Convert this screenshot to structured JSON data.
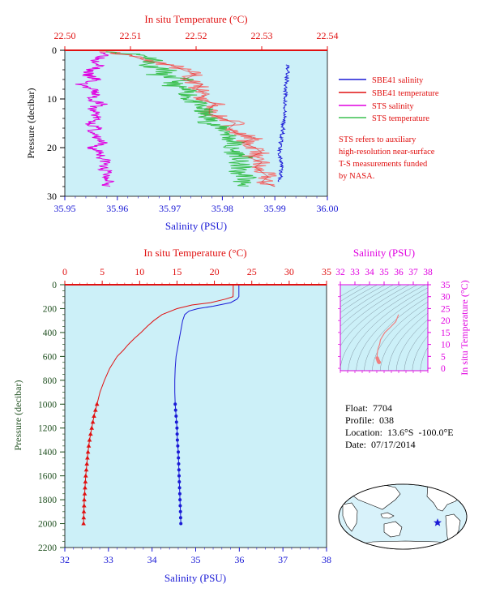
{
  "colors": {
    "blue": "#1a1ad6",
    "red": "#e01010",
    "magenta": "#e000e0",
    "green": "#3cc050",
    "salmon": "#f08080",
    "plotbg": "#ccf0f8",
    "pressure": "#205020",
    "land": "#ffffff",
    "ocean": "#d8f2fa"
  },
  "top_chart": {
    "top_axis_title": "In situ Temperature (°C)",
    "top_ticks": [
      "22.50",
      "22.51",
      "22.52",
      "22.53",
      "22.54"
    ],
    "bottom_axis_title": "Salinity (PSU)",
    "bottom_ticks": [
      "35.95",
      "35.96",
      "35.97",
      "35.98",
      "35.99",
      "36.00"
    ],
    "left_axis_title": "Pressure (decibar)",
    "left_ticks": [
      "0",
      "10",
      "20",
      "30"
    ],
    "legend": [
      {
        "label": "SBE41 salinity",
        "color": "#1a1ad6"
      },
      {
        "label": "SBE41 temperature",
        "color": "#e01010"
      },
      {
        "label": "STS salinity",
        "color": "#e000e0"
      },
      {
        "label": "STS temperature",
        "color": "#3cc050"
      }
    ],
    "note": [
      "STS refers to auxiliary",
      "high-resolution near-surface",
      "T-S measurements funded",
      "by NASA."
    ]
  },
  "main_chart": {
    "top_axis_title": "In situ Temperature (°C)",
    "top_ticks": [
      "0",
      "5",
      "10",
      "15",
      "20",
      "25",
      "30",
      "35"
    ],
    "bottom_axis_title": "Salinity (PSU)",
    "bottom_ticks": [
      "32",
      "33",
      "34",
      "35",
      "36",
      "37",
      "38"
    ],
    "left_axis_title": "Pressure (decibar)",
    "left_ticks": [
      "0",
      "200",
      "400",
      "600",
      "800",
      "1000",
      "1200",
      "1400",
      "1600",
      "1800",
      "2000",
      "2200"
    ]
  },
  "ts_chart": {
    "top_axis_title": "Salinity (PSU)",
    "top_ticks": [
      "32",
      "33",
      "34",
      "35",
      "36",
      "37",
      "38"
    ],
    "right_axis_title": "In situ Temperature (°C)",
    "right_ticks": [
      "0",
      "5",
      "10",
      "15",
      "20",
      "25",
      "30",
      "35"
    ]
  },
  "float_info": {
    "float_label": "Float:",
    "float_value": "7704",
    "profile_label": "Profile:",
    "profile_value": "038",
    "location_label": "Location:",
    "location_value": "13.6°S  -100.0°E",
    "date_label": "Date:",
    "date_value": "07/17/2014"
  },
  "chart_data": [
    {
      "type": "line",
      "xlabel": "Salinity (PSU)",
      "x2label": "In situ Temperature (°C)",
      "ylabel": "Pressure (decibar)",
      "xlim": [
        35.95,
        36.0
      ],
      "x2lim": [
        22.5,
        22.54
      ],
      "ylim": [
        30,
        0
      ],
      "grid": false,
      "legend_position": "right",
      "series": [
        {
          "name": "SBE41 salinity",
          "axis": "salinity",
          "pressure": [
            4,
            6,
            8,
            10,
            12,
            14,
            16,
            18,
            20,
            22,
            24,
            26,
            27
          ],
          "values": [
            35.9925,
            35.9923,
            35.992,
            35.992,
            35.9918,
            35.9918,
            35.9915,
            35.9913,
            35.991,
            35.991,
            35.9912,
            35.991,
            35.991
          ]
        },
        {
          "name": "SBE41 temperature",
          "axis": "temperature",
          "pressure": [
            0.5,
            1,
            2,
            3,
            4,
            5,
            6,
            7,
            8,
            9,
            10,
            11,
            12,
            13,
            14,
            15,
            16,
            17,
            18,
            19,
            20,
            21,
            22,
            23,
            24,
            25,
            26,
            27,
            28
          ],
          "values": [
            22.507,
            22.51,
            22.512,
            22.516,
            22.518,
            22.52,
            22.518,
            22.521,
            22.52,
            22.522,
            22.52,
            22.523,
            22.522,
            22.522,
            22.524,
            22.526,
            22.525,
            22.526,
            22.529,
            22.527,
            22.529,
            22.53,
            22.528,
            22.53,
            22.529,
            22.53,
            22.531,
            22.53,
            22.532
          ]
        },
        {
          "name": "STS salinity",
          "axis": "salinity",
          "pressure": [
            1,
            2,
            3,
            4,
            5,
            6,
            7,
            8,
            9,
            10,
            11,
            12,
            13,
            14,
            15,
            16,
            17,
            18,
            19,
            20,
            21,
            22,
            23,
            24,
            25,
            26,
            27,
            28
          ],
          "values": [
            35.958,
            35.956,
            35.957,
            35.955,
            35.954,
            35.956,
            35.953,
            35.955,
            35.956,
            35.955,
            35.957,
            35.955,
            35.956,
            35.956,
            35.955,
            35.956,
            35.955,
            35.956,
            35.957,
            35.955,
            35.957,
            35.957,
            35.958,
            35.957,
            35.958,
            35.958,
            35.959,
            35.958
          ]
        },
        {
          "name": "STS temperature",
          "axis": "temperature",
          "pressure": [
            0.5,
            1,
            2,
            3,
            4,
            5,
            6,
            7,
            8,
            9,
            10,
            11,
            12,
            13,
            14,
            15,
            16,
            17,
            18,
            19,
            20,
            21,
            22,
            23,
            24,
            25,
            26,
            27,
            28
          ],
          "values": [
            22.508,
            22.512,
            22.514,
            22.512,
            22.516,
            22.514,
            22.518,
            22.516,
            22.518,
            22.519,
            22.519,
            22.52,
            22.521,
            22.521,
            22.522,
            22.522,
            22.524,
            22.525,
            22.525,
            22.526,
            22.525,
            22.526,
            22.527,
            22.526,
            22.527,
            22.526,
            22.528,
            22.527,
            22.528
          ]
        }
      ]
    },
    {
      "type": "line",
      "xlabel": "Salinity (PSU)",
      "x2label": "In situ Temperature (°C)",
      "ylabel": "Pressure (decibar)",
      "xlim": [
        32,
        38
      ],
      "x2lim": [
        0,
        35
      ],
      "ylim": [
        2200,
        0
      ],
      "grid": false,
      "series": [
        {
          "name": "",
          "axis": "salinity",
          "pressure": [
            0,
            50,
            100,
            120,
            150,
            180,
            200,
            220,
            250,
            300,
            400,
            500,
            600,
            700,
            800,
            900,
            1000,
            1100,
            1200,
            1300,
            1400,
            1500,
            1600,
            1700,
            1800,
            1900,
            2000
          ],
          "values": [
            35.99,
            35.99,
            35.99,
            35.95,
            35.8,
            35.4,
            35.05,
            34.85,
            34.75,
            34.7,
            34.65,
            34.6,
            34.55,
            34.53,
            34.52,
            34.52,
            34.53,
            34.55,
            34.57,
            34.58,
            34.6,
            34.61,
            34.62,
            34.63,
            34.64,
            34.65,
            34.66
          ]
        },
        {
          "name": "",
          "axis": "temperature",
          "pressure": [
            0,
            50,
            100,
            120,
            150,
            170,
            200,
            250,
            300,
            350,
            400,
            450,
            500,
            550,
            600,
            700,
            800,
            900,
            1000,
            1100,
            1200,
            1300,
            1400,
            1500,
            1600,
            1700,
            1800,
            1900,
            2000
          ],
          "values": [
            22.52,
            22.52,
            22.5,
            21.5,
            19.5,
            17,
            15,
            13,
            11.9,
            11,
            10.2,
            9.3,
            8.5,
            7.8,
            7,
            6,
            5.3,
            4.7,
            4.3,
            3.9,
            3.6,
            3.3,
            3.1,
            2.95,
            2.8,
            2.7,
            2.6,
            2.55,
            2.5
          ]
        }
      ]
    },
    {
      "type": "line",
      "xlabel": "Salinity (PSU)",
      "ylabel": "In situ Temperature (°C)",
      "xlim": [
        32,
        38
      ],
      "ylim": [
        -1,
        35
      ],
      "grid": false,
      "series": [
        {
          "name": "",
          "salinity": [
            35.99,
            35.99,
            35.8,
            35.4,
            35.05,
            34.85,
            34.75,
            34.7,
            34.65,
            34.6,
            34.55,
            34.53,
            34.52,
            34.53,
            34.57,
            34.6,
            34.62,
            34.64,
            34.66
          ],
          "values": [
            22.52,
            22.5,
            19.5,
            17,
            15,
            13,
            11.9,
            10.2,
            9.3,
            8.5,
            7,
            6,
            5.3,
            4.3,
            3.6,
            3.1,
            2.8,
            2.6,
            2.5
          ]
        }
      ]
    }
  ]
}
